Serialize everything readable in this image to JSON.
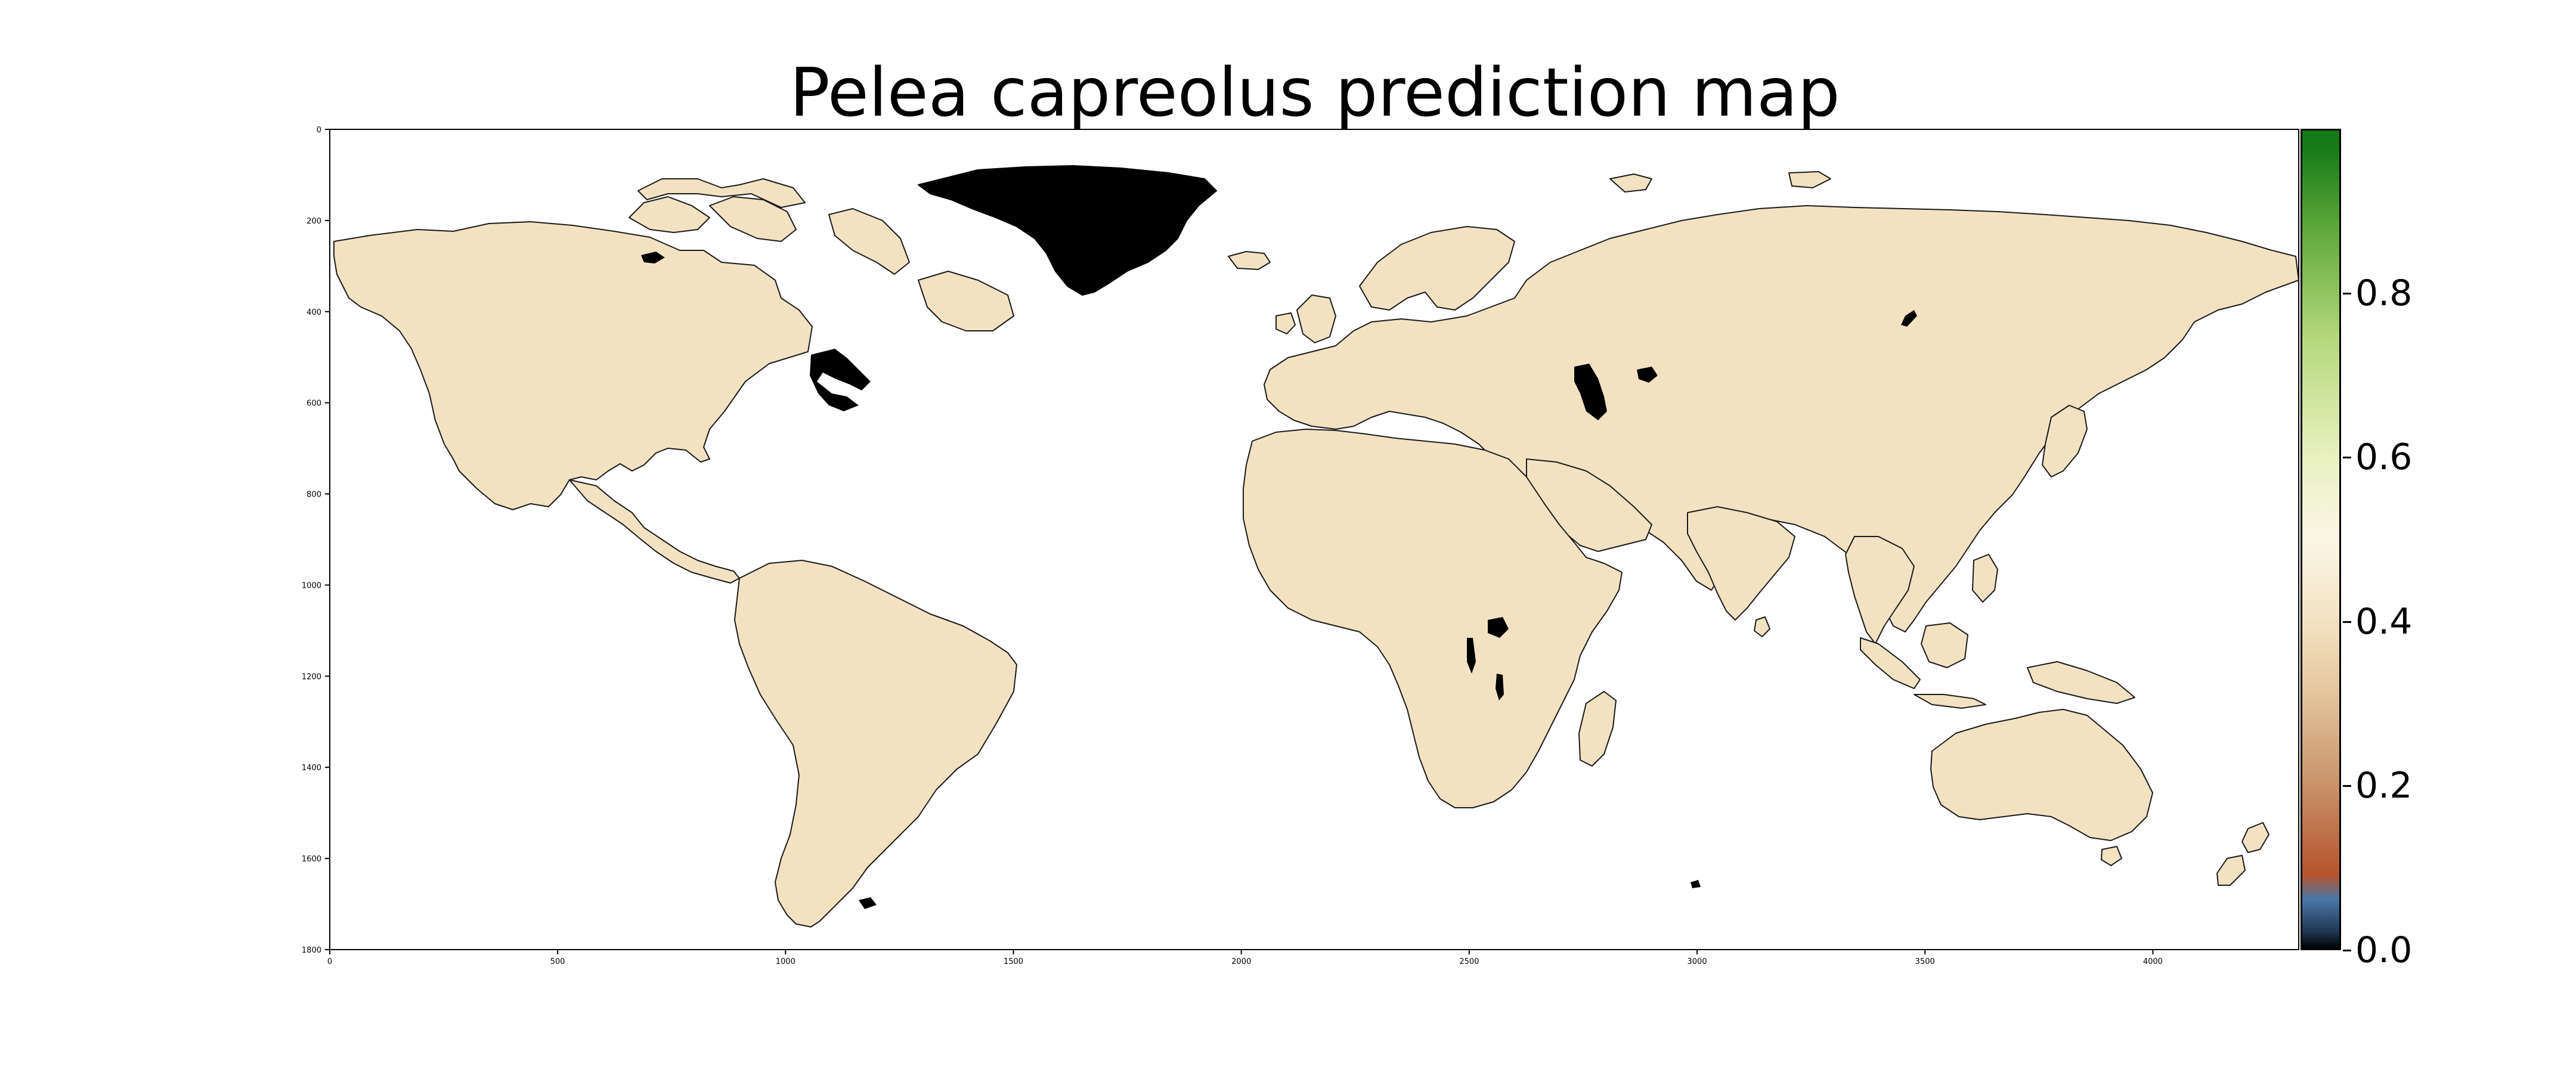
{
  "title": "Pelea capreolus prediction map",
  "colors": {
    "land": "#f3e2c2",
    "masked": "#000000",
    "coast": "#1a1a1a",
    "ocean": "#ffffff"
  },
  "axes": {
    "x_ticks": [
      "0",
      "500",
      "1000",
      "1500",
      "2000",
      "2500",
      "3000",
      "3500",
      "4000"
    ],
    "y_ticks": [
      "0",
      "200",
      "400",
      "600",
      "800",
      "1000",
      "1200",
      "1400",
      "1600",
      "1800"
    ],
    "x_range": [
      0,
      4320
    ],
    "y_range": [
      0,
      1800
    ],
    "grid": false
  },
  "colorbar": {
    "tick_labels": [
      "0.0",
      "0.2",
      "0.4",
      "0.6",
      "0.8"
    ],
    "range": [
      0,
      1
    ],
    "colormap_stops": [
      {
        "v": 0.0,
        "c": "#000000"
      },
      {
        "v": 0.02,
        "c": "#1f3550"
      },
      {
        "v": 0.06,
        "c": "#4a78a8"
      },
      {
        "v": 0.09,
        "c": "#b5532b"
      },
      {
        "v": 0.2,
        "c": "#c8926a"
      },
      {
        "v": 0.32,
        "c": "#e6c9a0"
      },
      {
        "v": 0.4,
        "c": "#f3e2c2"
      },
      {
        "v": 0.5,
        "c": "#fbf6e6"
      },
      {
        "v": 0.6,
        "c": "#e9f1c0"
      },
      {
        "v": 0.75,
        "c": "#b3d77a"
      },
      {
        "v": 0.88,
        "c": "#5ea83a"
      },
      {
        "v": 0.98,
        "c": "#157a17"
      }
    ]
  }
}
